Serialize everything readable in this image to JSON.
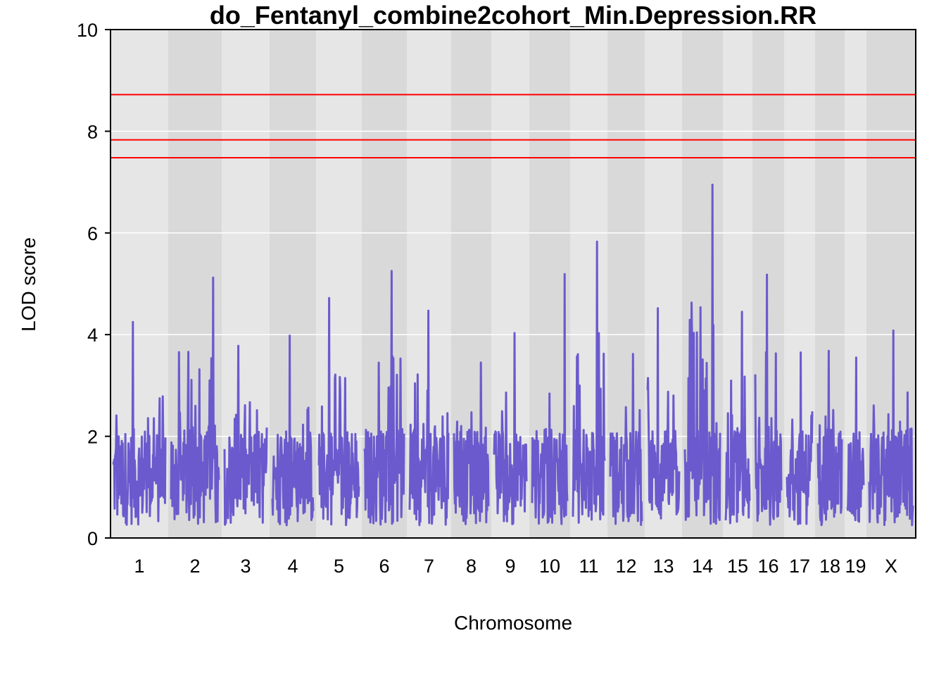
{
  "chart_data": {
    "type": "line",
    "title": "do_Fentanyl_combine2cohort_Min.Depression.RR",
    "xlabel": "Chromosome",
    "ylabel": "LOD score",
    "ylim": [
      0,
      10
    ],
    "yticks": [
      0,
      2,
      4,
      6,
      8,
      10
    ],
    "grid": true,
    "series_color": "#6A5ACD",
    "threshold_color": "#FF0000",
    "thresholds": [
      8.72,
      7.83,
      7.48
    ],
    "chromosomes": [
      {
        "label": "1",
        "peak": 4.25,
        "peak_pos": 0.38
      },
      {
        "label": "2",
        "peak": 5.12,
        "peak_pos": 0.88
      },
      {
        "label": "3",
        "peak": 3.78,
        "peak_pos": 0.33
      },
      {
        "label": "4",
        "peak": 3.98,
        "peak_pos": 0.42
      },
      {
        "label": "5",
        "peak": 4.72,
        "peak_pos": 0.25
      },
      {
        "label": "6",
        "peak": 5.25,
        "peak_pos": 0.68
      },
      {
        "label": "7",
        "peak": 4.47,
        "peak_pos": 0.48
      },
      {
        "label": "8",
        "peak": 3.45,
        "peak_pos": 0.78
      },
      {
        "label": "9",
        "peak": 4.03,
        "peak_pos": 0.63
      },
      {
        "label": "10",
        "peak": 5.19,
        "peak_pos": 0.92
      },
      {
        "label": "11",
        "peak": 5.83,
        "peak_pos": 0.76
      },
      {
        "label": "12",
        "peak": 3.62,
        "peak_pos": 0.72
      },
      {
        "label": "13",
        "peak": 4.52,
        "peak_pos": 0.33
      },
      {
        "label": "14",
        "peak": 6.95,
        "peak_pos": 0.78
      },
      {
        "label": "15",
        "peak": 4.45,
        "peak_pos": 0.68
      },
      {
        "label": "16",
        "peak": 5.18,
        "peak_pos": 0.45
      },
      {
        "label": "17",
        "peak": 3.65,
        "peak_pos": 0.55
      },
      {
        "label": "18",
        "peak": 3.68,
        "peak_pos": 0.45
      },
      {
        "label": "19",
        "peak": 3.55,
        "peak_pos": 0.55
      },
      {
        "label": "X",
        "peak": 4.08,
        "peak_pos": 0.55
      }
    ]
  }
}
